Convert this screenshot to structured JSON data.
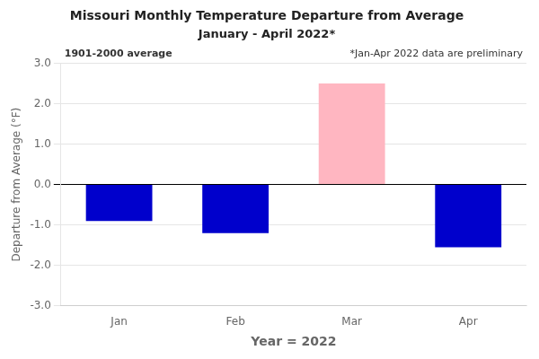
{
  "chart_data": {
    "type": "bar",
    "title": "Missouri Monthly Temperature Departure from Average",
    "subtitle": "January - April 2022*",
    "xlabel": "Year = 2022",
    "ylabel": "Departure from Average (°F)",
    "categories": [
      "Jan",
      "Feb",
      "Mar",
      "Apr"
    ],
    "values": [
      -0.9,
      -1.2,
      2.5,
      -1.55
    ],
    "colors": [
      "#0000cc",
      "#0000cc",
      "#ffb6c1",
      "#0000cc"
    ],
    "ylim": [
      -3.0,
      3.0
    ],
    "yticks": [
      {
        "value": -3.0,
        "label": "-3.0"
      },
      {
        "value": -2.0,
        "label": "-2.0"
      },
      {
        "value": -1.0,
        "label": "-1.0"
      },
      {
        "value": 0.0,
        "label": "0.0"
      },
      {
        "value": 1.0,
        "label": "1.0"
      },
      {
        "value": 2.0,
        "label": "2.0"
      },
      {
        "value": 3.0,
        "label": "3.0"
      }
    ],
    "annotations": [
      "1901-2000 average",
      "*Jan-Apr 2022 data are preliminary"
    ],
    "grid": true
  }
}
